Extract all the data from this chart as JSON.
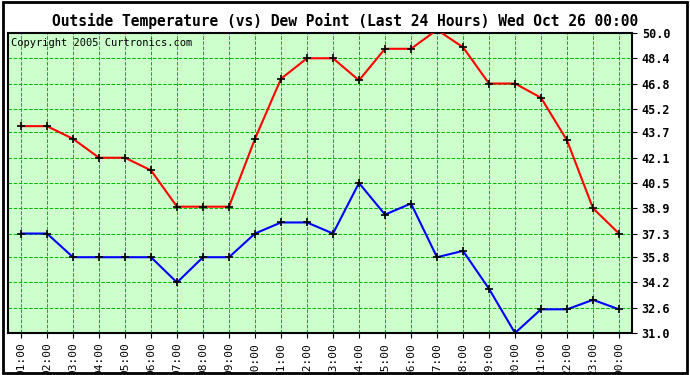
{
  "title": "Outside Temperature (vs) Dew Point (Last 24 Hours) Wed Oct 26 00:00",
  "copyright": "Copyright 2005 Curtronics.com",
  "x_labels": [
    "01:00",
    "02:00",
    "03:00",
    "04:00",
    "05:00",
    "06:00",
    "07:00",
    "08:00",
    "09:00",
    "10:00",
    "11:00",
    "12:00",
    "13:00",
    "14:00",
    "15:00",
    "16:00",
    "17:00",
    "18:00",
    "19:00",
    "20:00",
    "21:00",
    "22:00",
    "23:00",
    "00:00"
  ],
  "red_data": [
    44.1,
    44.1,
    43.3,
    42.1,
    42.1,
    41.3,
    39.0,
    39.0,
    39.0,
    43.3,
    47.1,
    48.4,
    48.4,
    47.0,
    49.0,
    49.0,
    50.2,
    49.1,
    46.8,
    46.8,
    45.9,
    43.2,
    38.9,
    37.3
  ],
  "blue_data": [
    37.3,
    37.3,
    35.8,
    35.8,
    35.8,
    35.8,
    34.2,
    35.8,
    35.8,
    37.3,
    38.0,
    38.0,
    37.3,
    40.5,
    38.5,
    39.2,
    35.8,
    36.2,
    33.8,
    31.0,
    32.5,
    32.5,
    33.1,
    32.5
  ],
  "red_color": "#ff0000",
  "blue_color": "#0000ff",
  "bg_color": "#ccffcc",
  "outer_bg_color": "#ffffff",
  "grid_color": "#00bb00",
  "title_fontsize": 10.5,
  "copyright_fontsize": 7.5,
  "tick_fontsize": 8.5,
  "xtick_fontsize": 8,
  "y_min": 31.0,
  "y_max": 50.0,
  "y_ticks": [
    31.0,
    32.6,
    34.2,
    35.8,
    37.3,
    38.9,
    40.5,
    42.1,
    43.7,
    45.2,
    46.8,
    48.4,
    50.0
  ]
}
